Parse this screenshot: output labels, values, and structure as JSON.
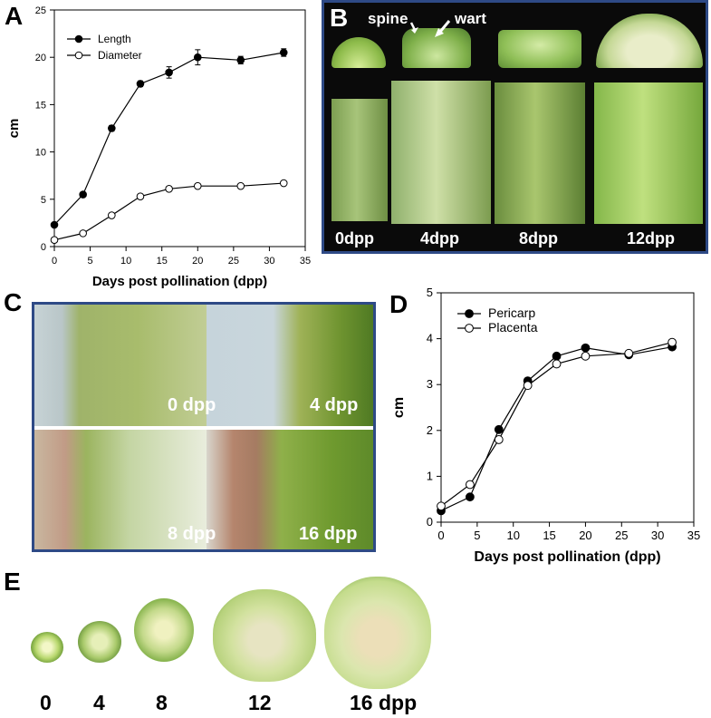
{
  "panels": {
    "a": "A",
    "b": "B",
    "c": "C",
    "d": "D",
    "e": "E"
  },
  "panel_b": {
    "annotations": {
      "spine": "spine",
      "wart": "wart"
    },
    "labels": [
      "0dpp",
      "4dpp",
      "8dpp",
      "12dpp"
    ]
  },
  "panel_c": {
    "labels": [
      "0 dpp",
      "4 dpp",
      "8 dpp",
      "16 dpp"
    ]
  },
  "panel_e": {
    "labels": [
      "0",
      "4",
      "8",
      "12",
      "16 dpp"
    ]
  },
  "colors": {
    "frame": "#2e4a86",
    "black": "#000000",
    "panel_b_bg": "#0a0a0a",
    "cucumber_green": "#7fb04a"
  },
  "chart_data": [
    {
      "type": "line",
      "panel": "A",
      "xlabel": "Days post pollination (dpp)",
      "ylabel": "cm",
      "xlim": [
        0,
        35
      ],
      "ylim": [
        0,
        25
      ],
      "xticks": [
        0,
        5,
        10,
        15,
        20,
        25,
        30,
        35
      ],
      "yticks": [
        0,
        5,
        10,
        15,
        20,
        25
      ],
      "grid": false,
      "legend_position": "top-left",
      "x": [
        0,
        4,
        8,
        12,
        16,
        20,
        26,
        32
      ],
      "series": [
        {
          "name": "Length",
          "marker": "filled",
          "values": [
            2.3,
            5.5,
            12.5,
            17.2,
            18.4,
            20.0,
            19.7,
            20.5
          ],
          "errors": [
            0.2,
            0.2,
            0.3,
            0.3,
            0.6,
            0.8,
            0.4,
            0.4
          ]
        },
        {
          "name": "Diameter",
          "marker": "open",
          "values": [
            0.7,
            1.4,
            3.3,
            5.3,
            6.1,
            6.4,
            6.4,
            6.7
          ],
          "errors": [
            0.1,
            0.1,
            0.2,
            0.2,
            0.2,
            0.2,
            0.2,
            0.2
          ]
        }
      ]
    },
    {
      "type": "line",
      "panel": "D",
      "xlabel": "Days post pollination (dpp)",
      "ylabel": "cm",
      "xlim": [
        0,
        35
      ],
      "ylim": [
        0,
        5
      ],
      "xticks": [
        0,
        5,
        10,
        15,
        20,
        25,
        30,
        35
      ],
      "yticks": [
        0,
        1,
        2,
        3,
        4,
        5
      ],
      "grid": false,
      "legend_position": "top-left",
      "x": [
        0,
        4,
        8,
        12,
        16,
        20,
        26,
        32
      ],
      "series": [
        {
          "name": "Pericarp",
          "marker": "filled",
          "values": [
            0.25,
            0.55,
            2.02,
            3.08,
            3.62,
            3.8,
            3.65,
            3.82
          ],
          "errors": [
            0.03,
            0.03,
            0.05,
            0.05,
            0.05,
            0.04,
            0.05,
            0.05
          ]
        },
        {
          "name": "Placenta",
          "marker": "open",
          "values": [
            0.35,
            0.82,
            1.8,
            2.98,
            3.45,
            3.62,
            3.68,
            3.92
          ],
          "errors": [
            0.03,
            0.03,
            0.06,
            0.07,
            0.07,
            0.06,
            0.06,
            0.05
          ]
        }
      ]
    }
  ]
}
